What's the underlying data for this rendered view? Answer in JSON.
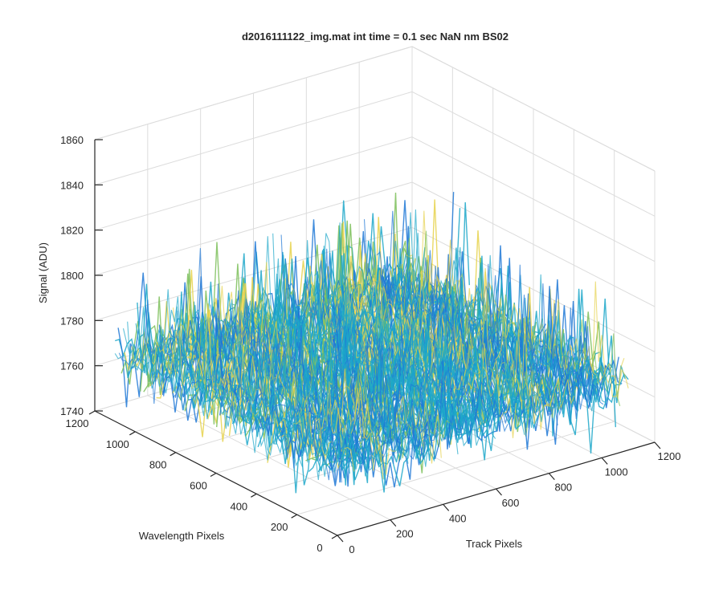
{
  "chart_data": {
    "type": "surface",
    "title": "d2016111122_img.mat int time = 0.1 sec  NaN nm BS02",
    "xlabel": "Track Pixels",
    "ylabel": "Wavelength Pixels",
    "zlabel": "Signal (ADU)",
    "xlim": [
      0,
      1200
    ],
    "ylim": [
      0,
      1200
    ],
    "zlim": [
      1740,
      1860
    ],
    "xticks": [
      0,
      200,
      400,
      600,
      800,
      1000,
      1200
    ],
    "yticks": [
      0,
      200,
      400,
      600,
      800,
      1000,
      1200
    ],
    "zticks": [
      1740,
      1760,
      1780,
      1800,
      1820,
      1840,
      1860
    ],
    "grid": true,
    "colormap": "parula",
    "surface_stats": {
      "extent_x": [
        0,
        1100
      ],
      "extent_y": [
        0,
        1100
      ],
      "mean_signal": 1770,
      "noise_range": [
        1745,
        1830
      ]
    },
    "colors": {
      "low": "#1f78d6",
      "mid": "#1ca7c9",
      "high": "#7dc05a",
      "peak": "#e6d24b"
    }
  }
}
